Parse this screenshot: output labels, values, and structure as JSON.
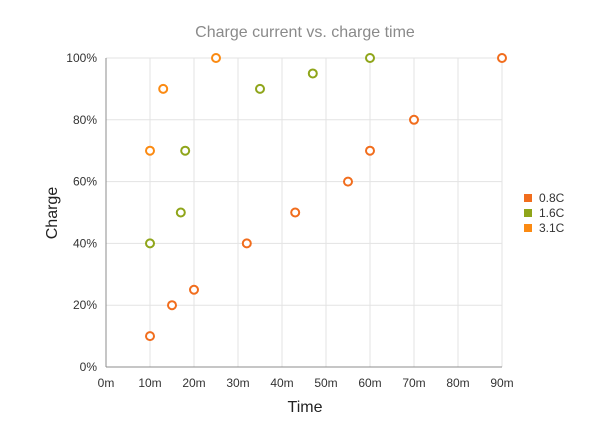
{
  "chart_data": {
    "type": "scatter",
    "title": "Charge current vs. charge time",
    "xlabel": "Time",
    "ylabel": "Charge",
    "xlim": [
      0,
      90
    ],
    "ylim": [
      0,
      100
    ],
    "x_ticks": [
      "0m",
      "10m",
      "20m",
      "30m",
      "40m",
      "50m",
      "60m",
      "70m",
      "80m",
      "90m"
    ],
    "y_ticks": [
      "0%",
      "20%",
      "40%",
      "60%",
      "80%",
      "100%"
    ],
    "grid": true,
    "legend_position": "right",
    "series": [
      {
        "name": "0.8C",
        "color": "#f16d1d",
        "points": [
          [
            10,
            10
          ],
          [
            15,
            20
          ],
          [
            20,
            25
          ],
          [
            32,
            40
          ],
          [
            43,
            50
          ],
          [
            55,
            60
          ],
          [
            60,
            70
          ],
          [
            70,
            80
          ],
          [
            90,
            100
          ]
        ]
      },
      {
        "name": "1.6C",
        "color": "#8fa51a",
        "points": [
          [
            10,
            40
          ],
          [
            17,
            50
          ],
          [
            18,
            70
          ],
          [
            35,
            90
          ],
          [
            47,
            95
          ],
          [
            60,
            100
          ]
        ]
      },
      {
        "name": "3.1C",
        "color": "#fb8a12",
        "points": [
          [
            10,
            70
          ],
          [
            13,
            90
          ],
          [
            25,
            100
          ]
        ]
      }
    ]
  }
}
